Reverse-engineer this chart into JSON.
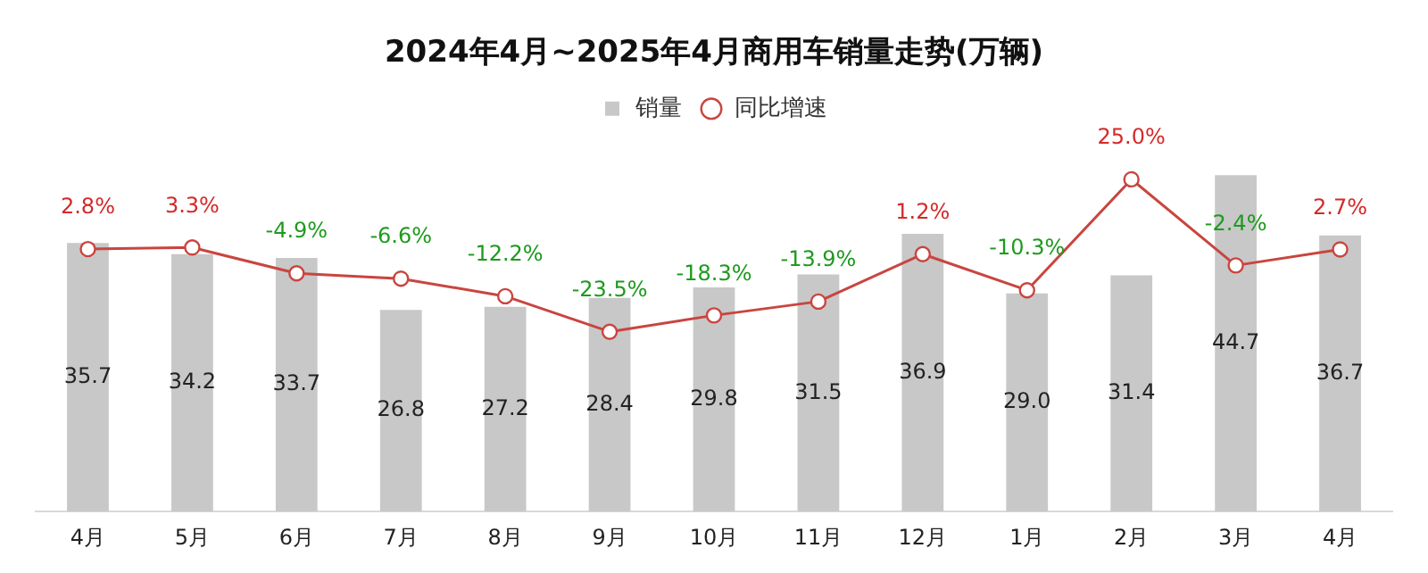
{
  "chart_data": {
    "type": "bar",
    "title": "2024年4月~2025年4月商用车销量走势(万辆)",
    "categories": [
      "4月",
      "5月",
      "6月",
      "7月",
      "8月",
      "9月",
      "10月",
      "11月",
      "12月",
      "1月",
      "2月",
      "3月",
      "4月"
    ],
    "legend": "top",
    "tick_labels": "x",
    "grid": false,
    "series": [
      {
        "name": "销量",
        "color": "#c8c8c8",
        "values": [
          35.7,
          34.2,
          33.7,
          26.8,
          27.2,
          28.4,
          29.8,
          31.5,
          36.9,
          29.0,
          31.4,
          44.7,
          36.7
        ],
        "value_labels": [
          "35.7",
          "34.2",
          "33.7",
          "26.8",
          "27.2",
          "28.4",
          "29.8",
          "31.5",
          "36.9",
          "29.0",
          "31.4",
          "44.7",
          "36.7"
        ]
      },
      {
        "name": "同比增速",
        "type": "line",
        "axis": "y2",
        "color": "#c9453f",
        "marker": "circle",
        "values": [
          2.8,
          3.3,
          -4.9,
          -6.6,
          -12.2,
          -23.5,
          -18.3,
          -13.9,
          1.2,
          -10.3,
          25.0,
          -2.4,
          2.7
        ],
        "value_labels": [
          "2.8%",
          "3.3%",
          "-4.9%",
          "-6.6%",
          "-12.2%",
          "-23.5%",
          "-18.3%",
          "-13.9%",
          "1.2%",
          "-10.3%",
          "25.0%",
          "-2.4%",
          "2.7%"
        ]
      }
    ]
  }
}
